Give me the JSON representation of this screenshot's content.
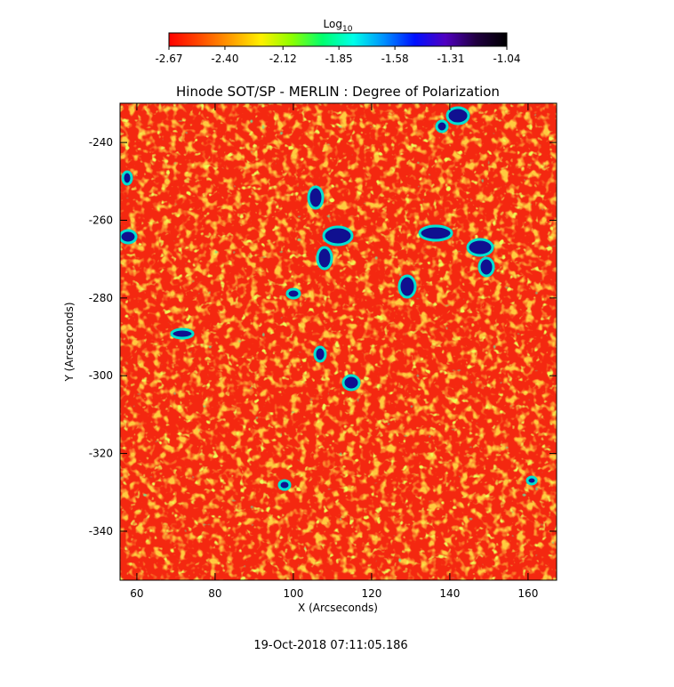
{
  "chart_data": {
    "type": "image",
    "title": "Hinode SOT/SP - MERLIN : Degree of Polarization",
    "x_label": "X (Arcseconds)",
    "y_label": "Y (Arcseconds)",
    "timestamp": "19-Oct-2018 07:11:05.186",
    "colorbar_title": "Log",
    "colorbar_title_sub": "10",
    "colormap": [
      "#ff0000",
      "#ff4a00",
      "#ff9c00",
      "#fff000",
      "#8cff00",
      "#00ff6e",
      "#00ffe8",
      "#0090ff",
      "#0010ff",
      "#5000c0",
      "#200040",
      "#000000"
    ],
    "clim": [
      -2.67,
      -1.04
    ],
    "cticks": [
      -2.67,
      {
        "value": -2.4,
        "label": "-2.40"
      },
      -2.12,
      -1.85,
      -1.58,
      -1.31,
      -1.04
    ],
    "xlim": [
      55.7,
      167.3
    ],
    "ylim": [
      -352.6,
      -229.9
    ],
    "xticks": [
      60,
      80,
      100,
      120,
      140,
      160
    ],
    "yticks": [
      -340,
      -320,
      -300,
      -280,
      -260,
      -240
    ]
  }
}
